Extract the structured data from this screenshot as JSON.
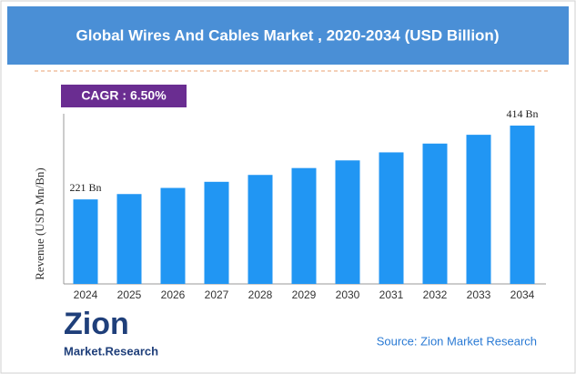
{
  "chart_data": {
    "type": "bar",
    "title": "Global Wires And Cables Market , 2020-2034 (USD Billion)",
    "annotation": "CAGR : 6.50%",
    "y_label": "Revenue (USD Mn/Bn)",
    "categories": [
      "2024",
      "2025",
      "2026",
      "2027",
      "2028",
      "2029",
      "2030",
      "2031",
      "2032",
      "2033",
      "2034"
    ],
    "values": [
      221,
      235,
      251,
      267,
      285,
      303,
      323,
      344,
      367,
      390,
      414
    ],
    "value_labels": [
      "221 Bn",
      null,
      null,
      null,
      null,
      null,
      null,
      null,
      null,
      null,
      "414 Bn"
    ],
    "color": "#2196f3",
    "ylim": [
      0,
      445
    ],
    "source": "Source: Zion Market Research",
    "logo": {
      "name": "Zion",
      "tagline": "Market.Research"
    }
  }
}
